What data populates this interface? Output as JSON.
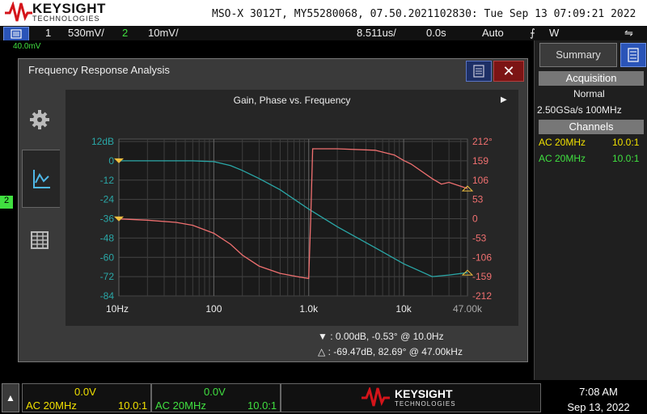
{
  "header": {
    "brand": "KEYSIGHT",
    "brand_sub": "TECHNOLOGIES",
    "model_line": "MSO-X 3012T, MY55280068, 07.50.2021102830: Tue Sep 13 07:09:21 2022"
  },
  "status_bar": {
    "ch1_num": "1",
    "ch1_scale": "530mV/",
    "ch2_num": "2",
    "ch2_scale": "10mV/",
    "timebase": "8.511us/",
    "delay": "0.0s",
    "trigger_mode": "Auto",
    "trigger_icon": "rising-edge-icon",
    "trigger_source": "W",
    "status_icon": "usb-icon"
  },
  "scope_labels": {
    "ch2_marker": "2",
    "top_scale": "40.0mV"
  },
  "fra": {
    "title": "Frequency Response Analysis",
    "close": "✕",
    "plot_title": "Gain, Phase vs. Frequency",
    "tabs": [
      "settings-icon",
      "chart-icon",
      "table-icon"
    ],
    "cursor1": "▼ :  0.00dB, -0.53° @ 10.0Hz",
    "cursor2": "△ :  -69.47dB, 82.69° @ 47.00kHz"
  },
  "colors": {
    "gain": "#2aa8a8",
    "phase": "#f07070",
    "ch1": "#f0e000",
    "ch2": "#40e040",
    "cursor": "#f0c040"
  },
  "chart_data": {
    "type": "line",
    "title": "Gain, Phase vs. Frequency",
    "x_scale": "log",
    "x_ticks": [
      "10Hz",
      "100",
      "1.0k",
      "10k",
      "47.00k"
    ],
    "x_range_hz": [
      10,
      47000
    ],
    "y_left_ticks": [
      "12dB",
      "0",
      "-12",
      "-24",
      "-36",
      "-48",
      "-60",
      "-72",
      "-84"
    ],
    "y_left_range": [
      -84,
      12
    ],
    "y_right_ticks": [
      "212°",
      "159",
      "106",
      "53",
      "0",
      "-53",
      "-106",
      "-159",
      "-212"
    ],
    "y_right_range": [
      -212,
      212
    ],
    "series": [
      {
        "axis": "left",
        "x": [
          10,
          30,
          60,
          100,
          150,
          200,
          300,
          500,
          1000,
          2000,
          5000,
          10000,
          20000,
          30000,
          47000
        ],
        "y": [
          0,
          0,
          0,
          -0.5,
          -3,
          -6,
          -11,
          -18,
          -30,
          -41,
          -54,
          -64,
          -72,
          -71,
          -69.5
        ]
      },
      {
        "axis": "right",
        "x": [
          10,
          20,
          40,
          60,
          100,
          150,
          200,
          300,
          500,
          800,
          1000,
          1050,
          1100,
          2000,
          5000,
          8000,
          10000,
          12000,
          20000,
          25000,
          30000,
          47000
        ],
        "y": [
          -0.5,
          -4,
          -10,
          -18,
          -40,
          -70,
          -100,
          -130,
          -150,
          -160,
          -164,
          0,
          192,
          192,
          188,
          175,
          160,
          150,
          110,
          95,
          100,
          83
        ]
      }
    ]
  },
  "summary_panel": {
    "summary": "Summary",
    "acquisition": "Acquisition",
    "mode": "Normal",
    "rate": "2.50GSa/s   100MHz",
    "channels": "Channels",
    "ch1_coupling": "AC  20MHz",
    "ch1_probe": "10.0:1",
    "ch2_coupling": "AC  20MHz",
    "ch2_probe": "10.0:1"
  },
  "bottom": {
    "ch1_offset": "0.0V",
    "ch1_coupling": "AC 20MHz",
    "ch1_probe": "10.0:1",
    "ch2_offset": "0.0V",
    "ch2_coupling": "AC 20MHz",
    "ch2_probe": "10.0:1",
    "time": "7:08 AM",
    "date": "Sep 13, 2022"
  }
}
